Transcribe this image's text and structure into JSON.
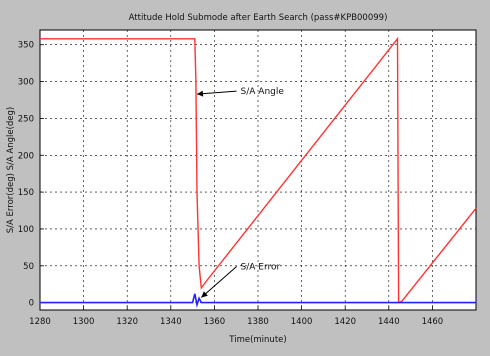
{
  "chart_data": {
    "type": "line",
    "title": "Attitude Hold Submode after Earth Search (pass#KPB00099)",
    "xlabel": "Time(minute)",
    "ylabel": "S/A Error(deg)  S/A Angle(deg)",
    "xlim": [
      1280,
      1480
    ],
    "ylim": [
      -10,
      370
    ],
    "xticks": [
      1280,
      1300,
      1320,
      1340,
      1360,
      1380,
      1400,
      1420,
      1440,
      1460
    ],
    "yticks": [
      0,
      50,
      100,
      150,
      200,
      250,
      300,
      350
    ],
    "grid": true,
    "series": [
      {
        "name": "S/A Angle",
        "color": "#ff3333",
        "x": [
          1280,
          1351,
          1351.5,
          1352,
          1353,
          1354,
          1356,
          1444,
          1444.5,
          1446,
          1480
        ],
        "y": [
          358,
          358,
          300,
          150,
          50,
          20,
          28,
          358,
          0,
          2,
          128
        ]
      },
      {
        "name": "S/A Error",
        "color": "#2222ff",
        "x": [
          1280,
          1350,
          1351,
          1352,
          1353,
          1354,
          1356,
          1480
        ],
        "y": [
          0,
          0,
          12,
          -3,
          6,
          0,
          0,
          0
        ]
      }
    ],
    "annotations": [
      {
        "text": "S/A Angle",
        "x": 1372,
        "y": 283,
        "arrow_to_x": 1352,
        "arrow_to_y": 283
      },
      {
        "text": "S/A Error",
        "x": 1372,
        "y": 45,
        "arrow_to_x": 1354,
        "arrow_to_y": 7
      }
    ]
  }
}
